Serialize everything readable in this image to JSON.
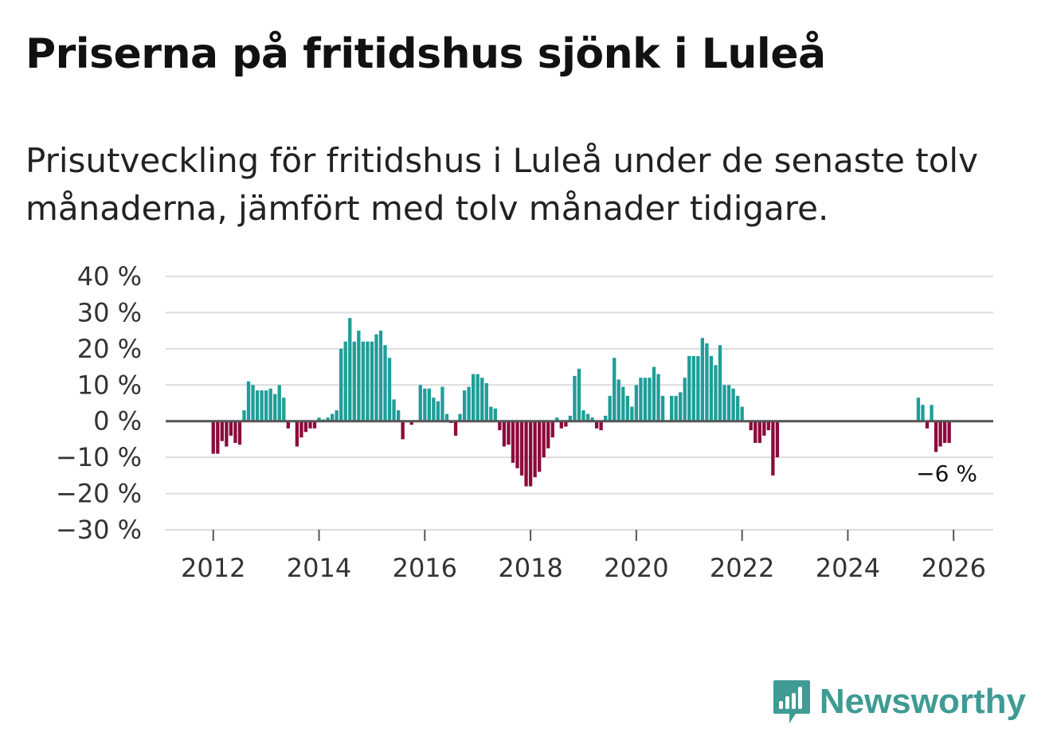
{
  "title": "Priserna på fritidshus sjönk i Luleå",
  "subtitle": "Prisutveckling för fritidshus i Luleå under de senaste tolv månaderna, jämfört med tolv månader tidigare.",
  "brand": "Newsworthy",
  "colors": {
    "positive": "#1f9e98",
    "negative": "#8c0a3b",
    "zero_line": "#555555",
    "grid": "#dcdcdc",
    "brand": "#3f9b93"
  },
  "chart_data": {
    "type": "bar",
    "x_start_year": 2011.25,
    "months_per_year": 12,
    "ylim": [
      -30,
      40
    ],
    "xlim": [
      2011.1,
      2026.75
    ],
    "y_ticks": [
      40,
      30,
      20,
      10,
      0,
      -10,
      -20,
      -30
    ],
    "y_tick_labels": [
      "40 %",
      "30 %",
      "20 %",
      "10 %",
      "0 %",
      "−10 %",
      "−20 %",
      "−30 %"
    ],
    "x_ticks": [
      2012,
      2014,
      2016,
      2018,
      2020,
      2022,
      2024,
      2026
    ],
    "x_tick_labels": [
      "2012",
      "2014",
      "2016",
      "2018",
      "2020",
      "2022",
      "2024",
      "2026"
    ],
    "annotation": {
      "label": "−6 %",
      "series_index": 175
    },
    "values": [
      0,
      0,
      0,
      0,
      0,
      0,
      0,
      0,
      0,
      -9,
      -9,
      -5.5,
      -7,
      -4,
      -6,
      -6.5,
      3,
      11,
      10,
      8.5,
      8.5,
      8.5,
      9,
      7.5,
      10,
      6.5,
      -2,
      0,
      -7,
      -4.5,
      -3,
      -2,
      -2,
      1,
      0.5,
      1,
      2,
      3,
      20,
      22,
      28.5,
      22,
      25,
      22,
      22,
      22,
      24,
      25,
      21,
      17.5,
      6,
      3,
      -5,
      0,
      -1,
      0,
      10,
      9,
      9,
      6.5,
      5.5,
      9.5,
      2,
      -0.5,
      -4,
      2,
      8.5,
      9.5,
      13,
      13,
      12,
      10.5,
      4,
      3.5,
      -2.5,
      -7,
      -6.5,
      -11.5,
      -13,
      -15,
      -18,
      -18,
      -15.5,
      -14,
      -10,
      -7.5,
      -4.5,
      1,
      -2,
      -1.5,
      1.5,
      12.5,
      14.5,
      3,
      2,
      1,
      -2,
      -2.5,
      1.5,
      7,
      17.5,
      11.5,
      9.5,
      7,
      4,
      10,
      12,
      12,
      12,
      15,
      13,
      7,
      0,
      7,
      7,
      8,
      12,
      18,
      18,
      18,
      23,
      21.5,
      18,
      15.5,
      21,
      10,
      10,
      9,
      7,
      4,
      0,
      -2.5,
      -6,
      -6,
      -4,
      -2.5,
      -15,
      -10,
      0,
      0,
      0,
      0,
      0,
      0,
      0,
      0,
      0,
      0,
      0,
      0,
      0,
      0,
      0,
      0,
      0,
      0,
      0,
      0,
      0,
      0,
      0,
      0,
      0,
      0,
      0,
      0,
      0,
      0,
      0,
      6.5,
      4.5,
      -2,
      4.5,
      -8.5,
      -7,
      -6,
      -6
    ]
  }
}
